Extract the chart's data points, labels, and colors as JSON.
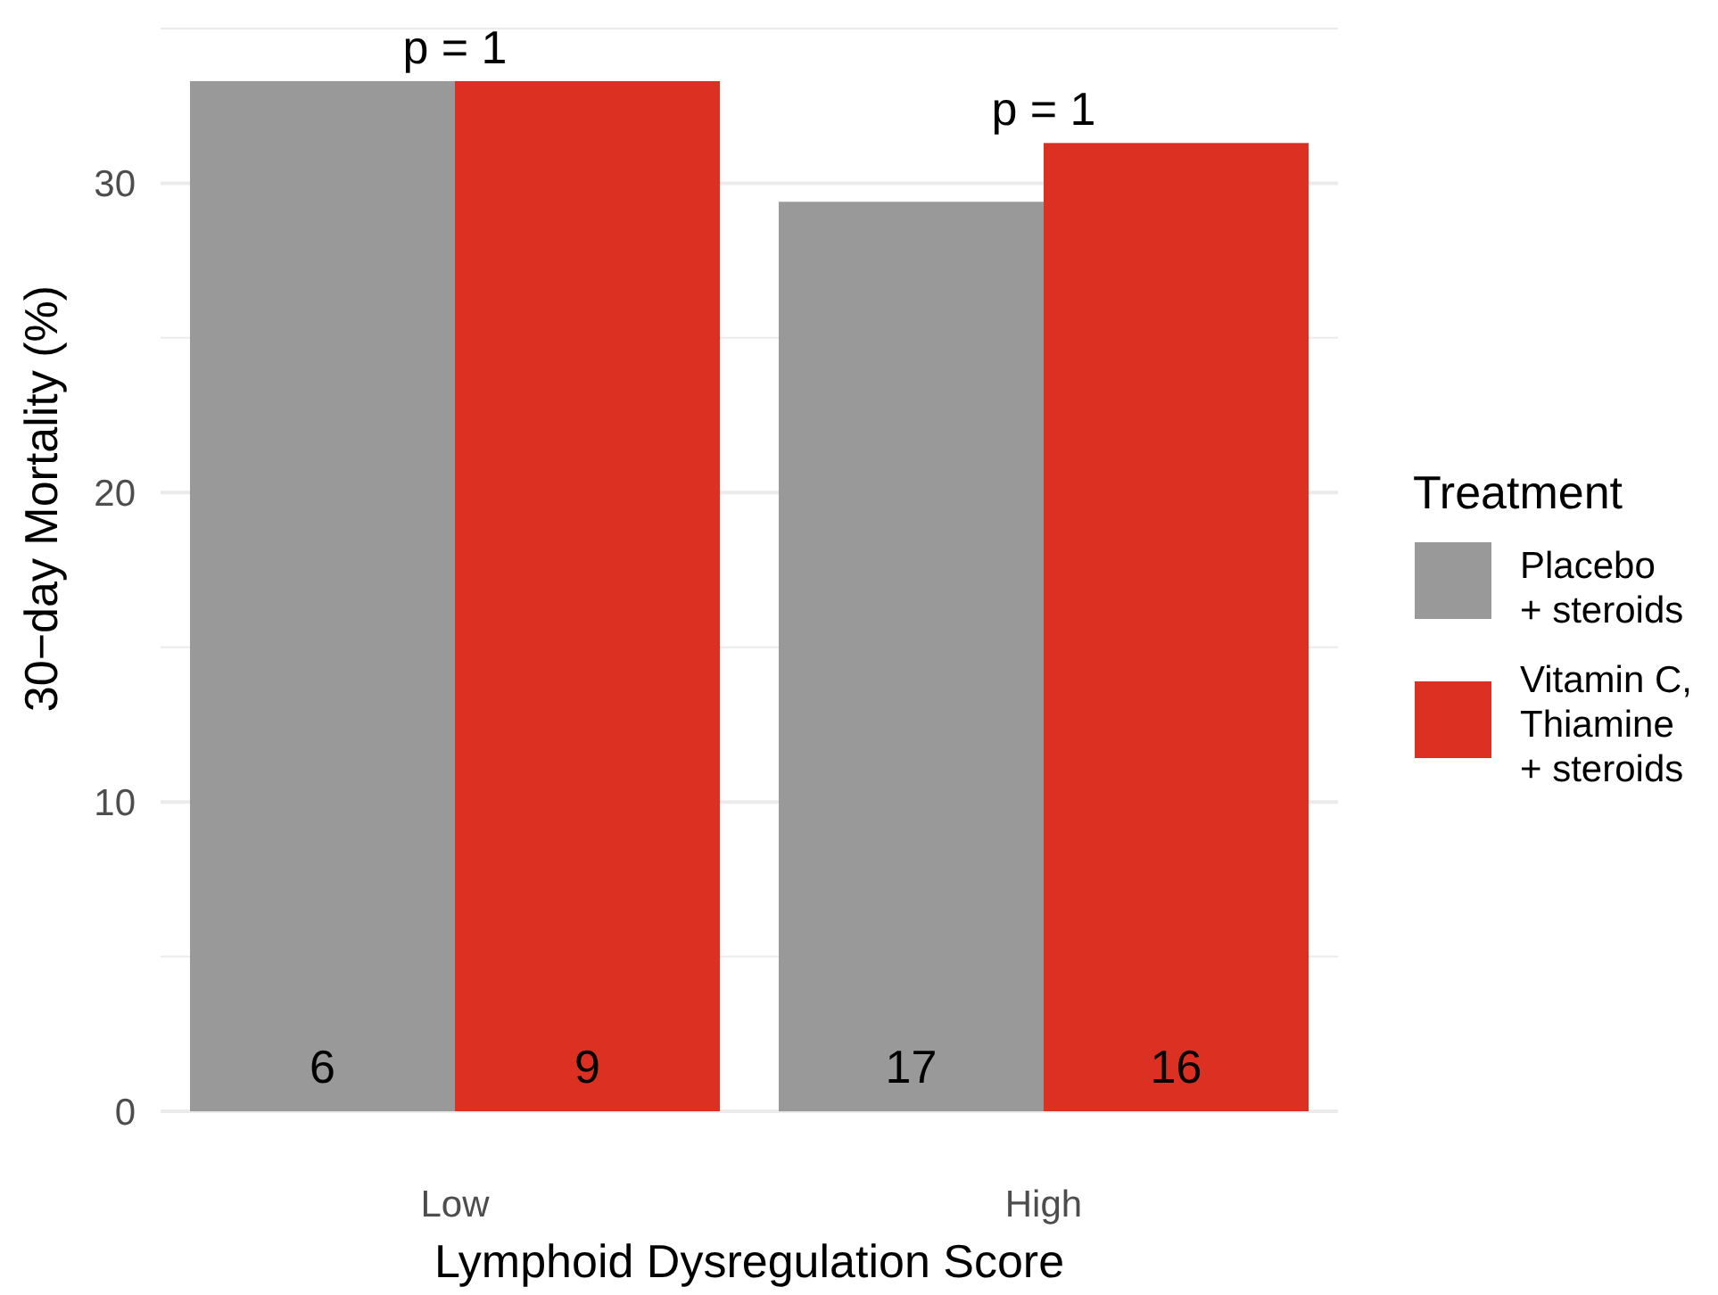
{
  "chart_data": {
    "type": "bar",
    "xlabel": "Lymphoid Dysregulation Score",
    "ylabel": "30−day Mortality (%)",
    "legend_title": "Treatment",
    "legend": "right",
    "grid": true,
    "categories": [
      "Low",
      "High"
    ],
    "series": [
      {
        "name": "Placebo + steroids",
        "color": "#999999",
        "values": [
          33.3,
          29.4
        ]
      },
      {
        "name": "Vitamin C, Thiamine + steroids",
        "color": "#dc3122",
        "values": [
          33.3,
          31.3
        ]
      }
    ],
    "ylim": [
      0,
      35
    ],
    "yticks": [
      0,
      {
        "value": 5,
        "label": null
      },
      10,
      {
        "value": 15,
        "label": null
      },
      20,
      {
        "value": 25,
        "label": null
      },
      30,
      {
        "value": 35,
        "label": null
      }
    ],
    "annotations": [
      "p = 1",
      "p = 1",
      "6",
      "9",
      "17",
      "16"
    ]
  }
}
